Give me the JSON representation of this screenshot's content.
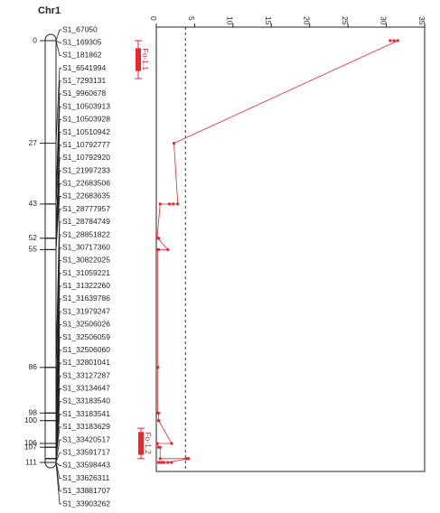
{
  "chart_data": {
    "type": "qtl_map",
    "title": "Chr1",
    "markers": [
      "S1_67050",
      "S1_169305",
      "S1_181862",
      "S1_6541994",
      "S1_7293131",
      "S1_9960678",
      "S1_10503913",
      "S1_10503928",
      "S1_10510942",
      "S1_10792777",
      "S1_10792920",
      "S1_21997233",
      "S1_22683506",
      "S1_22683635",
      "S1_28777957",
      "S1_28784749",
      "S1_28851822",
      "S1_30717360",
      "S1_30822025",
      "S1_31059221",
      "S1_31322260",
      "S1_31639786",
      "S1_31979247",
      "S1_32506026",
      "S1_32506059",
      "S1_32506060",
      "S1_32801041",
      "S1_33127287",
      "S1_33134647",
      "S1_33183540",
      "S1_33183541",
      "S1_33183629",
      "S1_33420517",
      "S1_33591717",
      "S1_33598443",
      "S1_33626311",
      "S1_33881707",
      "S1_33903262"
    ],
    "positions": [
      0,
      0,
      0,
      27,
      43,
      43,
      43,
      43,
      52,
      52,
      52,
      55,
      55,
      55,
      86,
      86,
      86,
      98,
      98,
      98,
      100,
      100,
      106,
      106,
      107,
      107,
      107,
      110,
      110,
      110,
      110,
      110,
      111,
      111,
      111,
      111,
      111,
      111
    ],
    "lod": [
      30.5,
      31,
      31.5,
      2.3,
      2.8,
      2.2,
      1.7,
      0.5,
      0.1,
      0.3,
      0.2,
      1.5,
      0.3,
      0.2,
      0.2,
      0.2,
      0.2,
      0.2,
      0.2,
      0.3,
      0.3,
      0.3,
      2,
      0.1,
      0.3,
      0.3,
      0.5,
      0.5,
      3.9,
      4.2,
      4.1,
      4.2,
      1.5,
      2,
      0.5,
      0.3,
      0.8,
      1
    ],
    "ylim": [
      0,
      111
    ],
    "yticks": [
      0,
      27,
      43,
      52,
      55,
      86,
      98,
      100,
      106,
      107,
      111
    ],
    "xlim": [
      0,
      35
    ],
    "xticks": [
      0,
      5,
      10,
      15,
      20,
      25,
      30,
      35
    ],
    "threshold": 3.8,
    "color": "#e8262b",
    "qtl": [
      {
        "name": "Fo-1.1",
        "start": 2,
        "end": 8,
        "low": 0,
        "high": 10
      },
      {
        "name": "Fo-1.2",
        "start": 103,
        "end": 109,
        "low": 102,
        "high": 110
      }
    ]
  }
}
